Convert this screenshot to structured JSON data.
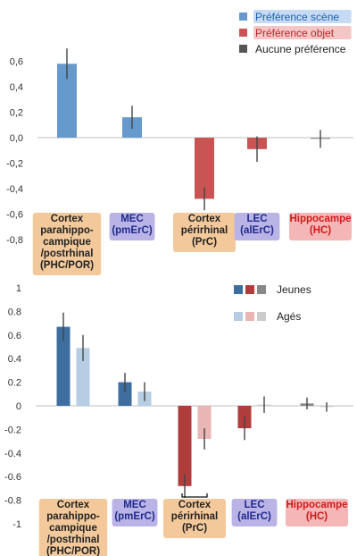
{
  "chart_data": [
    {
      "type": "bar",
      "title": "",
      "xlabel": "",
      "ylabel": "",
      "ylim": [
        -0.8,
        0.8
      ],
      "yticks": [
        "0,6",
        "0,4",
        "0,2",
        "0,0",
        "-0,2",
        "-0,4",
        "-0,6",
        "-0,8"
      ],
      "ytick_values": [
        0.6,
        0.4,
        0.2,
        0.0,
        -0.2,
        -0.4,
        -0.6,
        -0.8
      ],
      "grid": false,
      "legend_position": "top-right",
      "categories": [
        {
          "lines": [
            "Cortex",
            "parahippo-",
            "campique",
            "/postrhinal",
            "(PHC/POR)"
          ],
          "bg": "#f3c99b",
          "color": "#222222"
        },
        {
          "lines": [
            "MEC",
            "(pmErC)"
          ],
          "bg": "#b9b3e6",
          "color": "#1f2a8c"
        },
        {
          "lines": [
            "Cortex",
            "périrhinal",
            "(PrC)"
          ],
          "bg": "#f3c99b",
          "color": "#222222"
        },
        {
          "lines": [
            "LEC",
            "(alErC)"
          ],
          "bg": "#b9b3e6",
          "color": "#1f2a8c"
        },
        {
          "lines": [
            "Hippocampe",
            "(HC)"
          ],
          "bg": "#f4b6b6",
          "color": "#d21a1a"
        }
      ],
      "legend": [
        {
          "label": "Préférence scène",
          "color": "#6699cc",
          "text_color": "#1a5fb4",
          "text_bg": "#c6dbf3"
        },
        {
          "label": "Préférence objet",
          "color": "#c85454",
          "text_color": "#c0262b",
          "text_bg": "#f4c6c6"
        },
        {
          "label": "Aucune préférence",
          "color": "#555555",
          "text_color": "#222222",
          "text_bg": ""
        }
      ],
      "bars": [
        {
          "category": 0,
          "value": 0.58,
          "error": 0.12,
          "color": "#6699cc"
        },
        {
          "category": 1,
          "value": 0.16,
          "error": 0.09,
          "color": "#6699cc"
        },
        {
          "category": 2,
          "value": -0.48,
          "error": 0.09,
          "color": "#c85454"
        },
        {
          "category": 3,
          "value": -0.09,
          "error": 0.1,
          "color": "#c85454"
        },
        {
          "category": 4,
          "value": -0.01,
          "error": 0.07,
          "color": "#999999"
        }
      ]
    },
    {
      "type": "bar",
      "title": "",
      "xlabel": "",
      "ylabel": "",
      "ylim": [
        -1.0,
        1.0
      ],
      "yticks": [
        "1",
        "0.8",
        "0.6",
        "0.4",
        "0.2",
        "0",
        "-0.2",
        "-0.4",
        "-0.6",
        "-0.8",
        "-1"
      ],
      "ytick_values": [
        1.0,
        0.8,
        0.6,
        0.4,
        0.2,
        0.0,
        -0.2,
        -0.4,
        -0.6,
        -0.8,
        -1.0
      ],
      "grid": false,
      "legend_position": "top-right",
      "categories": [
        {
          "lines": [
            "Cortex",
            "parahippo-",
            "campique",
            "/postrhinal",
            "(PHC/POR)"
          ],
          "bg": "#f3c99b",
          "color": "#222222"
        },
        {
          "lines": [
            "MEC",
            "(pmErC)"
          ],
          "bg": "#b9b3e6",
          "color": "#1f2a8c"
        },
        {
          "lines": [
            "Cortex",
            "périrhinal",
            "(PrC)"
          ],
          "bg": "#f3c99b",
          "color": "#222222"
        },
        {
          "lines": [
            "LEC",
            "(alErC)"
          ],
          "bg": "#b9b3e6",
          "color": "#1f2a8c"
        },
        {
          "lines": [
            "Hippocampe",
            "(HC)"
          ],
          "bg": "#f4b6b6",
          "color": "#d21a1a"
        }
      ],
      "legend": [
        {
          "label": "Jeunes",
          "swatches": [
            "#3d6e9f",
            "#b03c3c",
            "#888888"
          ]
        },
        {
          "label": "Agés",
          "swatches": [
            "#b7cde3",
            "#eab5b5",
            "#cccccc"
          ]
        }
      ],
      "series": [
        {
          "name": "Jeunes",
          "values": [
            0.67,
            0.2,
            -0.68,
            -0.19,
            0.02
          ],
          "errors": [
            0.12,
            0.08,
            0.1,
            0.1,
            0.05
          ],
          "colors": [
            "#3d6e9f",
            "#3d6e9f",
            "#b03c3c",
            "#b03c3c",
            "#888888"
          ]
        },
        {
          "name": "Agés",
          "values": [
            0.49,
            0.12,
            -0.28,
            0.01,
            -0.01
          ],
          "errors": [
            0.11,
            0.08,
            0.09,
            0.07,
            0.04
          ],
          "colors": [
            "#b7cde3",
            "#b7cde3",
            "#eab5b5",
            "#cccccc",
            "#cccccc"
          ]
        }
      ],
      "significance": {
        "category": 2,
        "label": "*"
      }
    }
  ]
}
